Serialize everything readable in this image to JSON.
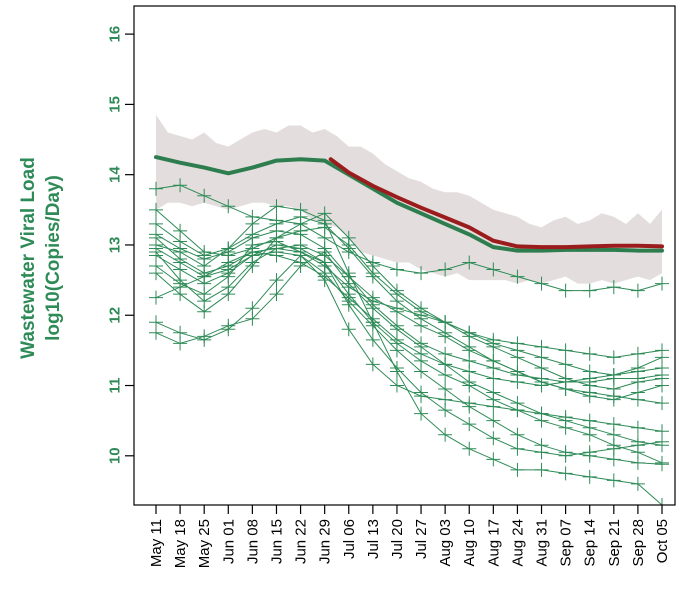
{
  "chart_data": {
    "type": "line",
    "title": "",
    "xlabel": "",
    "ylabel": "Wastewater Viral Load log10(Copies/Day)",
    "ylabel_lines": [
      "Wastewater Viral Load",
      "log10(Copies/Day)"
    ],
    "xlim_index": [
      0,
      21
    ],
    "ylim": [
      9.3,
      16.4
    ],
    "y_ticks": [
      10,
      11,
      12,
      13,
      14,
      15,
      16
    ],
    "categories": [
      "May 11",
      "May 18",
      "May 25",
      "Jun 01",
      "Jun 08",
      "Jun 15",
      "Jun 22",
      "Jun 29",
      "Jul 06",
      "Jul 13",
      "Jul 20",
      "Jul 27",
      "Aug 03",
      "Aug 10",
      "Aug 17",
      "Aug 24",
      "Aug 31",
      "Sep 07",
      "Sep 14",
      "Sep 21",
      "Sep 28",
      "Oct 05"
    ],
    "colors": {
      "sites": "#2e8b57",
      "mean": "#2e7d4f",
      "observed": "#9b1c1c",
      "band": "#e3dedd",
      "axis": "#000000"
    },
    "band": {
      "x": [
        0,
        0.5,
        1,
        1.5,
        2,
        2.5,
        3,
        3.5,
        4,
        4.5,
        5,
        5.5,
        6,
        6.5,
        7,
        7.5,
        8,
        8.5,
        9,
        9.5,
        10,
        10.5,
        11,
        11.5,
        12,
        12.5,
        13,
        13.5,
        14,
        14.5,
        15,
        15.5,
        16,
        16.5,
        17,
        17.5,
        18,
        18.5,
        19,
        19.5,
        20,
        20.5,
        21
      ],
      "upper": [
        14.85,
        14.6,
        14.55,
        14.5,
        14.6,
        14.45,
        14.4,
        14.5,
        14.6,
        14.65,
        14.6,
        14.7,
        14.7,
        14.6,
        14.65,
        14.55,
        14.4,
        14.4,
        14.3,
        14.15,
        14.05,
        13.95,
        13.9,
        13.8,
        13.75,
        13.75,
        13.7,
        13.6,
        13.5,
        13.45,
        13.4,
        13.3,
        13.25,
        13.35,
        13.4,
        13.3,
        13.35,
        13.45,
        13.4,
        13.3,
        13.45,
        13.3,
        13.5
      ],
      "lower": [
        13.5,
        13.6,
        13.6,
        13.55,
        13.6,
        13.55,
        13.5,
        13.55,
        13.6,
        13.6,
        13.55,
        13.55,
        13.5,
        13.35,
        13.3,
        13.25,
        13.1,
        12.9,
        12.85,
        12.8,
        12.75,
        12.75,
        12.65,
        12.6,
        12.55,
        12.6,
        12.5,
        12.5,
        12.5,
        12.5,
        12.45,
        12.5,
        12.45,
        12.5,
        12.55,
        12.45,
        12.45,
        12.5,
        12.45,
        12.5,
        12.55,
        12.5,
        12.6
      ]
    },
    "series": [
      {
        "role": "model mean",
        "x": [
          0,
          1,
          2,
          3,
          4,
          5,
          6,
          7,
          8,
          9,
          10,
          11,
          12,
          13,
          14,
          15,
          16,
          17,
          18,
          19,
          20,
          21
        ],
        "values": [
          14.25,
          14.17,
          14.1,
          14.02,
          14.1,
          14.2,
          14.22,
          14.2,
          14.0,
          13.8,
          13.6,
          13.45,
          13.3,
          13.15,
          12.97,
          12.92,
          12.92,
          12.93,
          12.93,
          12.93,
          12.92,
          12.92
        ]
      },
      {
        "role": "observed mean",
        "x": [
          7.25,
          8,
          9,
          10,
          11,
          12,
          13,
          14,
          15,
          16,
          17,
          18,
          19,
          20,
          21
        ],
        "values": [
          14.22,
          14.03,
          13.84,
          13.68,
          13.53,
          13.39,
          13.25,
          13.06,
          12.98,
          12.97,
          12.97,
          12.98,
          12.99,
          12.99,
          12.98
        ]
      }
    ],
    "site_series": [
      {
        "x": [
          0,
          1,
          2,
          3,
          4,
          5,
          6,
          7,
          8,
          9,
          10,
          11,
          12,
          13,
          14,
          15,
          16,
          17,
          18,
          19,
          20,
          21
        ],
        "values": [
          12.7,
          12.45,
          12.3,
          12.55,
          13.0,
          13.05,
          12.9,
          12.7,
          12.4,
          12.2,
          12.1,
          12.0,
          11.9,
          11.75,
          11.6,
          11.5,
          11.4,
          11.3,
          11.2,
          11.15,
          11.25,
          11.4
        ]
      },
      {
        "x": [
          0,
          1,
          2,
          3,
          4,
          5,
          6,
          7,
          8,
          9,
          10,
          11,
          12,
          13,
          14,
          15,
          16,
          17,
          18,
          19,
          20,
          21
        ],
        "values": [
          13.1,
          12.8,
          12.6,
          12.7,
          12.9,
          12.95,
          13.0,
          12.85,
          12.55,
          12.25,
          12.05,
          11.85,
          11.7,
          11.5,
          11.35,
          11.2,
          11.05,
          10.95,
          10.85,
          10.8,
          10.9,
          11.0
        ]
      },
      {
        "x": [
          0,
          1,
          2,
          3,
          4,
          5,
          6,
          7,
          8,
          9,
          10,
          11,
          12,
          13,
          14,
          15,
          16,
          17,
          18,
          19,
          20,
          21
        ],
        "values": [
          13.5,
          13.2,
          12.9,
          12.85,
          12.95,
          13.1,
          13.2,
          13.25,
          13.0,
          12.6,
          12.3,
          12.05,
          11.9,
          11.7,
          11.55,
          11.4,
          11.25,
          11.1,
          11.0,
          10.95,
          11.05,
          11.1
        ]
      },
      {
        "x": [
          0,
          1,
          2,
          3,
          4,
          5,
          6,
          7,
          8,
          9,
          10,
          11,
          12,
          13,
          14,
          15,
          16,
          17,
          18,
          19,
          20,
          21
        ],
        "values": [
          11.75,
          11.6,
          11.7,
          11.85,
          11.95,
          12.3,
          12.7,
          12.9,
          12.45,
          12.1,
          11.8,
          11.55,
          11.3,
          11.05,
          10.9,
          10.75,
          10.6,
          10.5,
          10.4,
          10.3,
          10.2,
          10.15
        ]
      },
      {
        "x": [
          0,
          1,
          2,
          3,
          4,
          5,
          6,
          7,
          8,
          9,
          10,
          11,
          12,
          13,
          14,
          15,
          16,
          17,
          18,
          19,
          20,
          21
        ],
        "values": [
          11.9,
          11.75,
          11.65,
          11.8,
          12.1,
          12.5,
          12.85,
          12.6,
          12.2,
          11.85,
          11.5,
          11.2,
          10.95,
          10.7,
          10.5,
          10.3,
          10.15,
          10.05,
          10.0,
          9.95,
          9.9,
          9.88
        ]
      },
      {
        "x": [
          0,
          1,
          2,
          3,
          4,
          5,
          6,
          7,
          8,
          9,
          10,
          11,
          12,
          13,
          14,
          15,
          16,
          17,
          18,
          19,
          20,
          21
        ],
        "values": [
          13.8,
          13.85,
          13.7,
          13.55,
          13.4,
          13.35,
          13.3,
          13.1,
          12.9,
          12.75,
          12.65,
          12.6,
          12.65,
          12.75,
          12.65,
          12.55,
          12.45,
          12.35,
          12.35,
          12.4,
          12.35,
          12.45
        ]
      },
      {
        "x": [
          0,
          1,
          2,
          3,
          4,
          5,
          6,
          7,
          8,
          9,
          10,
          11,
          12,
          13,
          14,
          15,
          16,
          17,
          18,
          19,
          20,
          21
        ],
        "values": [
          12.9,
          12.5,
          12.2,
          12.4,
          12.75,
          12.95,
          12.9,
          12.75,
          12.3,
          11.9,
          11.6,
          11.35,
          11.15,
          11.0,
          10.8,
          10.65,
          10.5,
          10.4,
          10.3,
          10.15,
          10.05,
          9.9
        ]
      },
      {
        "x": [
          0,
          1,
          2,
          3,
          4,
          5,
          6,
          7,
          8,
          9,
          10,
          11,
          12,
          13,
          14,
          15,
          16,
          17,
          18,
          19,
          20,
          21
        ],
        "values": [
          12.6,
          12.3,
          12.05,
          12.3,
          12.7,
          13.1,
          13.3,
          13.45,
          13.1,
          12.7,
          12.35,
          12.1,
          11.9,
          11.75,
          11.65,
          11.6,
          11.55,
          11.5,
          11.45,
          11.4,
          11.45,
          11.5
        ]
      },
      {
        "x": [
          0,
          1,
          2,
          3,
          4,
          5,
          6,
          7,
          8,
          9,
          10,
          11,
          12,
          13,
          14,
          15,
          16,
          17,
          18,
          19,
          20,
          21
        ],
        "values": [
          13.3,
          13.05,
          12.85,
          12.95,
          13.15,
          13.3,
          13.4,
          13.3,
          12.95,
          12.55,
          12.2,
          11.95,
          11.75,
          11.55,
          11.35,
          11.2,
          11.05,
          10.95,
          10.9,
          10.85,
          10.8,
          10.75
        ]
      },
      {
        "x": [
          0,
          1,
          2,
          3,
          4,
          5,
          6,
          7,
          8,
          9,
          10,
          11,
          12,
          13,
          14,
          15,
          16,
          17,
          18,
          19,
          20,
          21
        ],
        "values": [
          12.25,
          12.4,
          12.55,
          12.75,
          12.9,
          12.85,
          12.75,
          12.55,
          12.25,
          11.95,
          11.65,
          11.45,
          11.3,
          11.2,
          11.1,
          11.05,
          11.0,
          11.05,
          11.1,
          11.15,
          11.2,
          11.25
        ]
      },
      {
        "x": [
          0,
          1,
          2,
          3,
          4,
          5,
          6,
          7,
          8,
          9,
          10,
          11,
          12,
          13,
          14,
          15,
          16,
          17,
          18,
          19,
          20,
          21
        ],
        "values": [
          12.85,
          12.65,
          12.45,
          12.6,
          12.85,
          13.0,
          12.95,
          12.75,
          12.15,
          11.65,
          11.25,
          10.9,
          10.65,
          10.45,
          10.25,
          10.1,
          10.05,
          10.0,
          10.05,
          10.1,
          10.15,
          10.2
        ]
      },
      {
        "x": [
          0,
          1,
          2,
          3,
          4,
          5,
          6,
          7,
          8,
          9,
          10,
          11,
          12,
          13,
          14,
          15,
          16,
          17,
          18,
          19,
          20,
          21
        ],
        "values": [
          13.0,
          12.9,
          12.7,
          12.95,
          13.3,
          13.55,
          13.5,
          13.35,
          12.6,
          11.9,
          11.2,
          10.6,
          10.3,
          10.1,
          9.95,
          9.8,
          9.8,
          9.75,
          9.7,
          9.65,
          9.6,
          9.3
        ]
      },
      {
        "x": [
          0,
          1,
          2,
          3,
          4,
          5,
          6,
          7,
          8,
          9,
          10,
          11,
          12,
          13,
          14,
          15,
          16,
          17,
          18,
          19,
          20,
          21
        ],
        "values": [
          12.95,
          12.75,
          12.55,
          12.65,
          12.85,
          12.9,
          12.85,
          12.5,
          11.8,
          11.3,
          11.0,
          10.85,
          10.8,
          10.75,
          10.7,
          10.65,
          10.6,
          10.55,
          10.5,
          10.45,
          10.4,
          10.35
        ]
      },
      {
        "x": [
          0,
          1,
          2,
          3,
          4,
          5,
          6,
          7,
          8,
          9,
          10,
          11,
          12,
          13,
          14,
          15,
          16,
          17,
          18,
          19,
          20,
          21
        ],
        "values": [
          13.15,
          12.95,
          12.8,
          12.9,
          13.1,
          13.2,
          13.15,
          12.95,
          12.55,
          12.15,
          11.85,
          11.6,
          11.45,
          11.35,
          11.25,
          11.15,
          11.1,
          11.05,
          11.05,
          11.1,
          11.1,
          11.15
        ]
      }
    ]
  }
}
